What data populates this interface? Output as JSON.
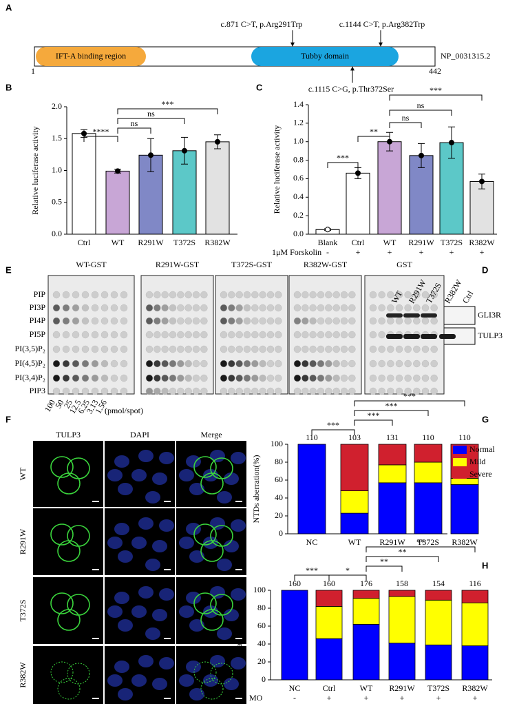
{
  "panel_labels": {
    "a": "A",
    "b": "B",
    "c": "C",
    "d": "D",
    "e": "E",
    "f": "F",
    "g": "G",
    "h": "H"
  },
  "protein": {
    "domains": [
      "IFT-A binding region",
      "Tubby domain"
    ],
    "start": 1,
    "end": 442,
    "accession": "NP_0031315.2",
    "variants": [
      "c.871 C>T, p.Arg291Trp",
      "c.1144 C>T, p.Arg382Trp",
      "c.1115 C>G, p.Thr372Ser"
    ]
  },
  "chart_data": [
    {
      "type": "bar",
      "y_label": "Relative luciferase activity",
      "categories": [
        "Ctrl",
        "WT",
        "R291W",
        "T372S",
        "R382W"
      ],
      "values": [
        1.58,
        0.99,
        1.24,
        1.31,
        1.45
      ],
      "errors": [
        0.06,
        0.03,
        0.26,
        0.21,
        0.11
      ],
      "colors": [
        "#ffffff",
        "#c8a6d6",
        "#8088c6",
        "#5cc8c8",
        "#e2e2e2"
      ],
      "ylim": [
        0,
        2
      ],
      "yticks": [
        {
          "value": 0,
          "label": "0.0"
        },
        {
          "value": 0.5,
          "label": "0.5"
        },
        {
          "value": 1,
          "label": "1.0"
        },
        {
          "value": 1.5,
          "label": "1.5"
        },
        {
          "value": 2,
          "label": "2.0"
        }
      ],
      "significance": [
        {
          "label": "****",
          "between": [
            "Ctrl",
            "WT"
          ]
        },
        {
          "label": "ns",
          "between": [
            "WT",
            "R291W"
          ]
        },
        {
          "label": "ns",
          "between": [
            "WT",
            "T372S"
          ]
        },
        {
          "label": "***",
          "between": [
            "WT",
            "R382W"
          ]
        }
      ]
    },
    {
      "type": "bar",
      "y_label": "Relative luciferase activity",
      "categories": [
        "Blank",
        "Ctrl",
        "WT",
        "R291W",
        "T372S",
        "R382W"
      ],
      "values": [
        0.05,
        0.66,
        1.0,
        0.85,
        0.99,
        0.57
      ],
      "errors": [
        0.01,
        0.06,
        0.1,
        0.13,
        0.17,
        0.08
      ],
      "colors": [
        "#ffffff",
        "#ffffff",
        "#c8a6d6",
        "#8088c6",
        "#5cc8c8",
        "#e2e2e2"
      ],
      "ylim": [
        0,
        1.4
      ],
      "yticks": [
        {
          "value": 0,
          "label": "0.0"
        },
        0.2,
        0.4,
        0.6,
        0.8,
        {
          "value": 1,
          "label": "1.0"
        },
        1.2,
        1.4
      ],
      "treatment": {
        "label": "1μM Forskolin",
        "values": [
          "-",
          "+",
          "+",
          "+",
          "+",
          "+"
        ]
      },
      "significance": [
        {
          "label": "***",
          "between": [
            "Blank",
            "Ctrl"
          ]
        },
        {
          "label": "**",
          "between": [
            "Ctrl",
            "WT"
          ]
        },
        {
          "label": "ns",
          "between": [
            "WT",
            "R291W"
          ]
        },
        {
          "label": "ns",
          "between": [
            "WT",
            "T372S"
          ]
        },
        {
          "label": "***",
          "between": [
            "WT",
            "R382W"
          ]
        }
      ]
    },
    {
      "type": "stacked_bar",
      "y_label": "NTDs aberration(%)",
      "legend": "right",
      "categories": [
        "NC",
        "WT",
        "R291W",
        "T372S",
        "R382W"
      ],
      "n_labels": [
        110,
        103,
        131,
        110,
        110
      ],
      "series": [
        {
          "name": "Normal",
          "color": "#0000ff",
          "values": [
            100,
            23,
            57,
            57,
            55
          ]
        },
        {
          "name": "Mild",
          "color": "#ffff00",
          "values": [
            0,
            25,
            20,
            23,
            7
          ]
        },
        {
          "name": "Severe",
          "color": "#d0202e",
          "values": [
            0,
            52,
            23,
            20,
            38
          ]
        }
      ],
      "ylim": [
        0,
        100
      ],
      "yticks": [
        0,
        20,
        40,
        60,
        80,
        100
      ],
      "significance": [
        {
          "label": "***",
          "between": [
            "NC",
            "WT"
          ]
        },
        {
          "label": "***",
          "between": [
            "WT",
            "R291W"
          ]
        },
        {
          "label": "***",
          "between": [
            "WT",
            "T372S"
          ]
        },
        {
          "label": "***",
          "between": [
            "WT",
            "R382W"
          ]
        }
      ]
    },
    {
      "type": "stacked_bar",
      "y_label": "NTDs aberration(%)",
      "categories": [
        "NC",
        "Ctrl",
        "WT",
        "R291W",
        "T372S",
        "R382W"
      ],
      "n_labels": [
        160,
        160,
        176,
        158,
        154,
        116
      ],
      "series": [
        {
          "name": "Normal",
          "color": "#0000ff",
          "values": [
            100,
            46,
            62,
            41,
            39,
            38
          ]
        },
        {
          "name": "Mild",
          "color": "#ffff00",
          "values": [
            0,
            36,
            29,
            52,
            50,
            48
          ]
        },
        {
          "name": "Severe",
          "color": "#d0202e",
          "values": [
            0,
            18,
            9,
            7,
            11,
            14
          ]
        }
      ],
      "ylim": [
        0,
        100
      ],
      "yticks": [
        0,
        20,
        40,
        60,
        80,
        100
      ],
      "treatment": {
        "label": "MO",
        "values": [
          "-",
          "+",
          "+",
          "+",
          "+",
          "+"
        ]
      },
      "significance": [
        {
          "label": "***",
          "between": [
            "NC",
            "Ctrl"
          ]
        },
        {
          "label": "*",
          "between": [
            "Ctrl",
            "WT"
          ]
        },
        {
          "label": "**",
          "between": [
            "WT",
            "R291W"
          ]
        },
        {
          "label": "**",
          "between": [
            "WT",
            "T372S"
          ]
        },
        {
          "label": "**",
          "between": [
            "WT",
            "R382W"
          ]
        }
      ]
    }
  ],
  "dot_blot": {
    "membranes": [
      "WT-GST",
      "R291W-GST",
      "T372S-GST",
      "R382W-GST",
      "GST"
    ],
    "lipids": [
      "PIP",
      "PI3P",
      "PI4P",
      "PI5P",
      "PI(3,5)P₂",
      "PI(4,5)P₂",
      "PI(3,4)P₂",
      "PIP3"
    ],
    "amounts": [
      100,
      50,
      25,
      12.5,
      6.25,
      3.13,
      1.56
    ],
    "unit": "(pmol/spot)"
  },
  "western_blot": {
    "lanes": [
      "WT",
      "R291W",
      "T372S",
      "R382W",
      "Ctrl"
    ],
    "bands": [
      "GLI3R",
      "TULP3"
    ]
  },
  "imaging": {
    "channels": [
      "TULP3",
      "DAPI",
      "Merge"
    ],
    "rows": [
      "WT",
      "R291W",
      "T372S",
      "R382W"
    ]
  }
}
